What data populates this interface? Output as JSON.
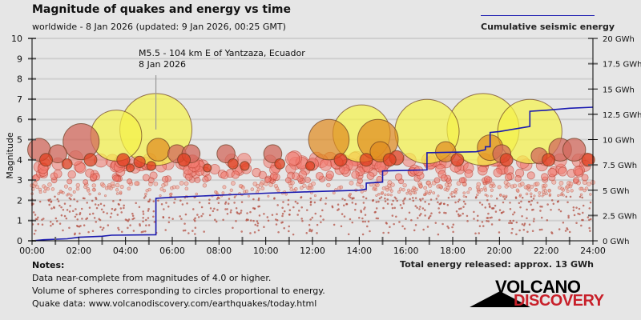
{
  "header": {
    "title": "Magnitude of quakes and energy vs time",
    "subtitle": "worldwide -  8 Jan 2026 (updated: 9 Jan 2026, 00:25 GMT)",
    "legend_label": "Cumulative seismic energy"
  },
  "annotation": {
    "line1": "M5.5 - 104 km E of Yantzaza, Ecuador",
    "line2": "8 Jan 2026"
  },
  "notes": {
    "heading": "Notes:",
    "lines": [
      "Data near-complete from magnitudes of 4.0 or higher.",
      "Volume of spheres corresponding to circles proportional to energy.",
      "Quake data: www.volcanodiscovery.com/earthquakes/today.html"
    ]
  },
  "total_energy": "Total energy released: approx. 13 GWh",
  "logo": {
    "top": "VOLCANO",
    "bottom": "DISCOVERY"
  },
  "colors": {
    "energy_line": "#1a1ab0",
    "logo_red": "#c8202a"
  },
  "chart_data": {
    "type": "scatter",
    "title": "Magnitude of quakes and energy vs time",
    "xlabel": "",
    "ylabel": "Magnitude",
    "y2label": "Cumulative seismic energy (GWh)",
    "xlim_hours": [
      0,
      24
    ],
    "ylim": [
      0,
      10
    ],
    "y2lim": [
      0,
      20
    ],
    "x_ticks": [
      "00:00",
      "02:00",
      "04:00",
      "06:00",
      "08:00",
      "10:00",
      "12:00",
      "14:00",
      "16:00",
      "18:00",
      "20:00",
      "22:00",
      "24:00"
    ],
    "y_ticks": [
      "0",
      "1",
      "2",
      "3",
      "4",
      "5",
      "6",
      "7",
      "8",
      "9",
      "10"
    ],
    "y2_ticks": [
      "0 GWh",
      "2.5 GWh",
      "5 GWh",
      "7.5 GWh",
      "10 GWh",
      "12.5 GWh",
      "15 GWh",
      "17.5 GWh",
      "20 GWh"
    ],
    "grid": true,
    "legend": "top-right",
    "major_quakes": [
      {
        "t": 0.3,
        "mag": 4.5
      },
      {
        "t": 0.6,
        "mag": 4.0
      },
      {
        "t": 1.1,
        "mag": 4.3
      },
      {
        "t": 1.5,
        "mag": 3.8
      },
      {
        "t": 2.1,
        "mag": 4.9
      },
      {
        "t": 2.5,
        "mag": 4.0
      },
      {
        "t": 3.6,
        "mag": 5.2
      },
      {
        "t": 3.9,
        "mag": 4.0
      },
      {
        "t": 4.2,
        "mag": 3.6
      },
      {
        "t": 4.6,
        "mag": 3.9
      },
      {
        "t": 5.1,
        "mag": 3.7
      },
      {
        "t": 5.3,
        "mag": 5.5
      },
      {
        "t": 5.4,
        "mag": 4.5
      },
      {
        "t": 6.2,
        "mag": 4.3
      },
      {
        "t": 6.5,
        "mag": 4.0
      },
      {
        "t": 6.8,
        "mag": 4.3
      },
      {
        "t": 7.5,
        "mag": 3.6
      },
      {
        "t": 8.3,
        "mag": 4.3
      },
      {
        "t": 8.6,
        "mag": 3.8
      },
      {
        "t": 9.1,
        "mag": 3.7
      },
      {
        "t": 10.3,
        "mag": 4.3
      },
      {
        "t": 10.6,
        "mag": 3.8
      },
      {
        "t": 11.9,
        "mag": 3.7
      },
      {
        "t": 12.7,
        "mag": 5.0
      },
      {
        "t": 13.2,
        "mag": 4.0
      },
      {
        "t": 14.1,
        "mag": 5.3
      },
      {
        "t": 14.3,
        "mag": 4.0
      },
      {
        "t": 14.8,
        "mag": 5.0
      },
      {
        "t": 14.9,
        "mag": 4.4
      },
      {
        "t": 15.3,
        "mag": 4.0
      },
      {
        "t": 15.6,
        "mag": 4.1
      },
      {
        "t": 16.9,
        "mag": 5.4
      },
      {
        "t": 17.7,
        "mag": 4.4
      },
      {
        "t": 18.2,
        "mag": 4.0
      },
      {
        "t": 19.3,
        "mag": 5.5
      },
      {
        "t": 19.6,
        "mag": 4.6
      },
      {
        "t": 20.1,
        "mag": 4.3
      },
      {
        "t": 20.3,
        "mag": 4.0
      },
      {
        "t": 21.3,
        "mag": 5.4
      },
      {
        "t": 21.7,
        "mag": 4.2
      },
      {
        "t": 22.1,
        "mag": 4.0
      },
      {
        "t": 22.6,
        "mag": 4.5
      },
      {
        "t": 23.2,
        "mag": 4.5
      },
      {
        "t": 23.8,
        "mag": 4.0
      }
    ],
    "cumulative_energy_gwh": [
      {
        "t": 0.0,
        "e": 0.0
      },
      {
        "t": 0.5,
        "e": 0.1
      },
      {
        "t": 1.5,
        "e": 0.2
      },
      {
        "t": 2.0,
        "e": 0.35
      },
      {
        "t": 3.0,
        "e": 0.45
      },
      {
        "t": 3.4,
        "e": 0.55
      },
      {
        "t": 5.3,
        "e": 0.6
      },
      {
        "t": 5.3,
        "e": 4.2
      },
      {
        "t": 6.0,
        "e": 4.3
      },
      {
        "t": 8.0,
        "e": 4.5
      },
      {
        "t": 10.0,
        "e": 4.7
      },
      {
        "t": 12.0,
        "e": 4.85
      },
      {
        "t": 14.0,
        "e": 5.0
      },
      {
        "t": 14.3,
        "e": 5.1
      },
      {
        "t": 14.3,
        "e": 5.7
      },
      {
        "t": 15.0,
        "e": 5.8
      },
      {
        "t": 15.0,
        "e": 6.9
      },
      {
        "t": 16.9,
        "e": 7.0
      },
      {
        "t": 16.9,
        "e": 8.7
      },
      {
        "t": 19.0,
        "e": 8.8
      },
      {
        "t": 19.4,
        "e": 9.0
      },
      {
        "t": 19.4,
        "e": 9.3
      },
      {
        "t": 19.6,
        "e": 9.3
      },
      {
        "t": 19.6,
        "e": 10.7
      },
      {
        "t": 20.0,
        "e": 10.8
      },
      {
        "t": 21.3,
        "e": 11.3
      },
      {
        "t": 21.3,
        "e": 12.8
      },
      {
        "t": 22.0,
        "e": 12.9
      },
      {
        "t": 23.0,
        "e": 13.1
      },
      {
        "t": 24.0,
        "e": 13.2
      }
    ],
    "annotation": {
      "t": 5.3,
      "mag": 5.5,
      "label": "M5.5 - 104 km E of Yantzaza, Ecuador",
      "date": "8 Jan 2026"
    }
  }
}
